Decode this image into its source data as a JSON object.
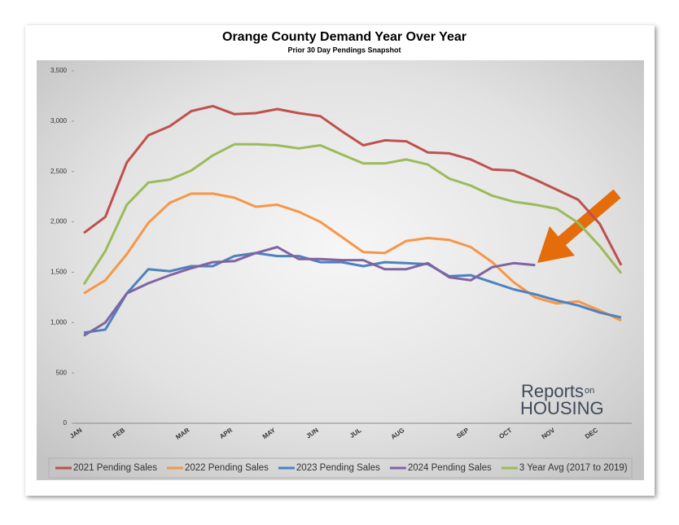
{
  "chart_data": {
    "type": "line",
    "title": "Orange County Demand Year Over Year",
    "subtitle": "Prior 30 Day Pendings Snapshot",
    "categories": [
      "JAN",
      null,
      "FEB",
      null,
      null,
      "MAR",
      null,
      "APR",
      null,
      "MAY",
      null,
      "JUN",
      null,
      "JUL",
      null,
      "AUG",
      null,
      null,
      "SEP",
      null,
      "OCT",
      null,
      "NOV",
      null,
      "DEC",
      null
    ],
    "series": [
      {
        "name": "2021 Pending Sales",
        "color": "#c0504d",
        "values": [
          1890,
          2050,
          2590,
          2860,
          2950,
          3100,
          3150,
          3070,
          3080,
          3120,
          3080,
          3050,
          2900,
          2760,
          2810,
          2800,
          2690,
          2680,
          2620,
          2520,
          2510,
          2420,
          2320,
          2220,
          1980,
          1570
        ]
      },
      {
        "name": "2022 Pending Sales",
        "color": "#f79646",
        "values": [
          1290,
          1420,
          1680,
          1990,
          2190,
          2280,
          2280,
          2240,
          2150,
          2170,
          2100,
          2000,
          1850,
          1700,
          1690,
          1810,
          1840,
          1820,
          1750,
          1600,
          1400,
          1250,
          1190,
          1210,
          1120,
          1020
        ]
      },
      {
        "name": "2023 Pending Sales",
        "color": "#4f81bd",
        "values": [
          900,
          930,
          1290,
          1530,
          1510,
          1560,
          1560,
          1660,
          1690,
          1660,
          1660,
          1600,
          1600,
          1560,
          1600,
          1590,
          1580,
          1460,
          1470,
          1400,
          1330,
          1280,
          1220,
          1170,
          1100,
          1050
        ]
      },
      {
        "name": "2024 Pending Sales",
        "color": "#8064a2",
        "values": [
          870,
          1000,
          1290,
          1390,
          1470,
          1540,
          1600,
          1610,
          1690,
          1750,
          1630,
          1630,
          1620,
          1620,
          1530,
          1530,
          1590,
          1450,
          1420,
          1550,
          1590,
          1570,
          null,
          null,
          null,
          null
        ]
      },
      {
        "name": "3 Year Avg (2017 to 2019)",
        "color": "#9bbb59",
        "values": [
          1380,
          1710,
          2170,
          2390,
          2420,
          2510,
          2660,
          2770,
          2770,
          2760,
          2730,
          2760,
          2670,
          2580,
          2580,
          2620,
          2570,
          2430,
          2360,
          2260,
          2200,
          2170,
          2130,
          1990,
          1760,
          1490
        ]
      }
    ],
    "ylim": [
      0,
      3500
    ],
    "yticks": [
      0,
      {
        "value": 500,
        "label": "500"
      },
      {
        "value": 1000,
        "label": "1,000"
      },
      {
        "value": 1500,
        "label": "1,500"
      },
      {
        "value": 2000,
        "label": "2,000"
      },
      {
        "value": 2500,
        "label": "2,500"
      },
      {
        "value": 3000,
        "label": "3,000"
      },
      {
        "value": 3500,
        "label": "3,500"
      }
    ],
    "grid": false,
    "legend": "bottom",
    "logo": {
      "main": "Reports",
      "small": "on",
      "sub": "HOUSING"
    }
  }
}
